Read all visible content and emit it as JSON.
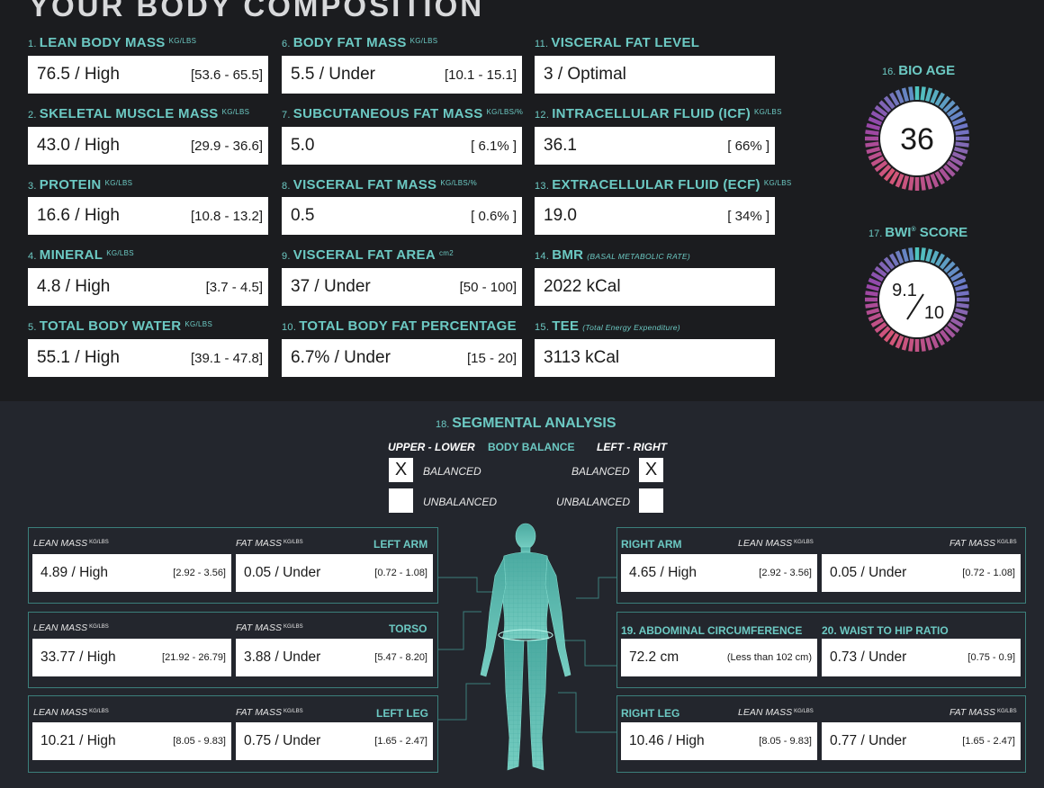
{
  "title": "YOUR BODY COMPOSITION",
  "metrics": [
    {
      "num": "1.",
      "label": "LEAN BODY MASS",
      "unit": "KG/LBS",
      "value": "76.5 / High",
      "range": "[53.6 - 65.5]"
    },
    {
      "num": "2.",
      "label": "SKELETAL MUSCLE MASS",
      "unit": "KG/LBS",
      "value": "43.0 / High",
      "range": "[29.9 - 36.6]"
    },
    {
      "num": "3.",
      "label": "PROTEIN",
      "unit": "KG/LBS",
      "value": "16.6 / High",
      "range": "[10.8 - 13.2]"
    },
    {
      "num": "4.",
      "label": "MINERAL",
      "unit": "KG/LBS",
      "value": "4.8 / High",
      "range": "[3.7 - 4.5]"
    },
    {
      "num": "5.",
      "label": "TOTAL BODY WATER",
      "unit": "KG/LBS",
      "value": "55.1 / High",
      "range": "[39.1 - 47.8]"
    },
    {
      "num": "6.",
      "label": "BODY FAT MASS",
      "unit": "KG/LBS",
      "value": "5.5 / Under",
      "range": "[10.1 - 15.1]"
    },
    {
      "num": "7.",
      "label": "SUBCUTANEOUS FAT MASS",
      "unit": "KG/LBS/%",
      "value": "5.0",
      "range": "[ 6.1% ]"
    },
    {
      "num": "8.",
      "label": "VISCERAL FAT MASS",
      "unit": "KG/LBS/%",
      "value": "0.5",
      "range": "[ 0.6% ]"
    },
    {
      "num": "9.",
      "label": "VISCERAL FAT AREA",
      "unit": "cm2",
      "value": "37 / Under",
      "range": "[50 - 100]"
    },
    {
      "num": "10.",
      "label": "TOTAL BODY FAT PERCENTAGE",
      "unit": "",
      "value": "6.7% / Under",
      "range": "[15 - 20]"
    },
    {
      "num": "11.",
      "label": "VISCERAL FAT LEVEL",
      "unit": "",
      "value": "3 / Optimal",
      "range": ""
    },
    {
      "num": "12.",
      "label": "INTRACELLULAR FLUID (ICF)",
      "unit": "KG/LBS",
      "value": "36.1",
      "range": "[ 66% ]"
    },
    {
      "num": "13.",
      "label": "EXTRACELLULAR FLUID (ECF)",
      "unit": "KG/LBS",
      "value": "19.0",
      "range": "[ 34% ]"
    },
    {
      "num": "14.",
      "label": "BMR",
      "note": "(BASAL METABOLIC RATE)",
      "value": "2022 kCal",
      "range": ""
    },
    {
      "num": "15.",
      "label": "TEE",
      "note": "(Total Energy Expenditure)",
      "value": "3113 kCal",
      "range": ""
    }
  ],
  "bio_age": {
    "num": "16.",
    "label": "BIO AGE",
    "value": "36"
  },
  "bwi": {
    "num": "17.",
    "label": "BWI",
    "mark": "®",
    "label2": " SCORE",
    "score": "9.1",
    "max": "10"
  },
  "segmental": {
    "num": "18.",
    "title": "SEGMENTAL ANALYSIS",
    "upper_lower": "UPPER - LOWER",
    "body_balance": "BODY BALANCE",
    "left_right": "LEFT - RIGHT",
    "balanced": "BALANCED",
    "unbalanced": "UNBALANCED",
    "upper_lower_mark": "X",
    "left_right_mark": "X",
    "lean_mass": "LEAN MASS",
    "fat_mass": "FAT MASS",
    "unit": "KG/LBS",
    "left_arm": {
      "part": "LEFT ARM",
      "lean": "4.89 / High",
      "lean_range": "[2.92 - 3.56]",
      "fat": "0.05 / Under",
      "fat_range": "[0.72 - 1.08]"
    },
    "torso": {
      "part": "TORSO",
      "lean": "33.77 / High",
      "lean_range": "[21.92 - 26.79]",
      "fat": "3.88 / Under",
      "fat_range": "[5.47 - 8.20]"
    },
    "left_leg": {
      "part": "LEFT LEG",
      "lean": "10.21 / High",
      "lean_range": "[8.05 - 9.83]",
      "fat": "0.75 / Under",
      "fat_range": "[1.65 - 2.47]"
    },
    "right_arm": {
      "part": "RIGHT ARM",
      "lean": "4.65 / High",
      "lean_range": "[2.92 - 3.56]",
      "fat": "0.05 / Under",
      "fat_range": "[0.72 - 1.08]"
    },
    "right_leg": {
      "part": "RIGHT LEG",
      "lean": "10.46 / High",
      "lean_range": "[8.05 - 9.83]",
      "fat": "0.77 / Under",
      "fat_range": "[1.65 - 2.47]"
    }
  },
  "abdominal": {
    "num": "19.",
    "label": "ABDOMINAL CIRCUMFERENCE",
    "value": "72.2 cm",
    "range": "(Less than 102 cm)"
  },
  "whr": {
    "num": "20.",
    "label": "WAIST TO HIP RATIO",
    "value": "0.73 / Under",
    "range": "[0.75 - 0.9]"
  },
  "colors": {
    "accent": "#6cc9c3",
    "top_bg": "#1b1c1f",
    "bottom_bg": "#23262d",
    "panel_border": "#3b7f7b"
  }
}
